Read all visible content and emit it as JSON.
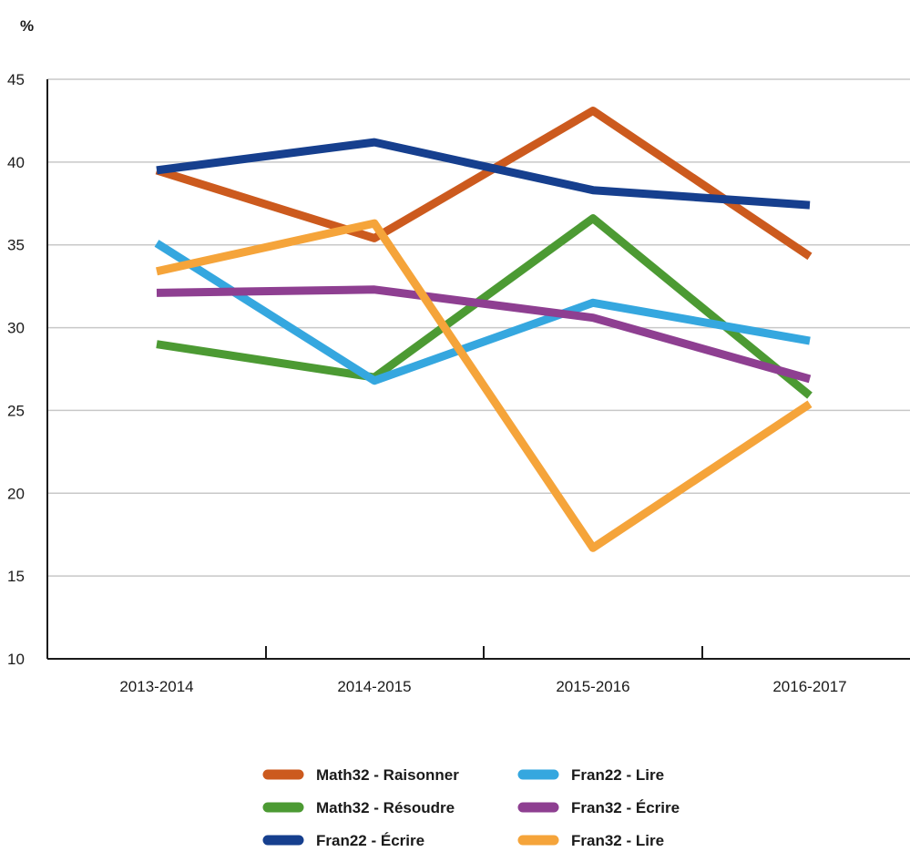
{
  "chart_data": {
    "type": "line",
    "ylabel": "%",
    "categories": [
      "2013-2014",
      "2014-2015",
      "2015-2016",
      "2016-2017"
    ],
    "ylim": [
      10,
      45
    ],
    "yticks": [
      10,
      15,
      20,
      25,
      30,
      35,
      40,
      45
    ],
    "grid": true,
    "legend_position": "bottom",
    "series": [
      {
        "name": "Math32 - Raisonner",
        "color": "#cc5a1e",
        "values": [
          39.5,
          35.4,
          43.1,
          34.3
        ]
      },
      {
        "name": "Math32 - Résoudre",
        "color": "#4c9a33",
        "values": [
          29.0,
          27.0,
          36.6,
          25.9
        ]
      },
      {
        "name": "Fran22 - Écrire",
        "color": "#163f8e",
        "values": [
          39.5,
          41.2,
          38.3,
          37.4
        ]
      },
      {
        "name": "Fran22 - Lire",
        "color": "#35a7df",
        "values": [
          35.1,
          26.8,
          31.5,
          29.2
        ]
      },
      {
        "name": "Fran32 - Écrire",
        "color": "#8e3f91",
        "values": [
          32.1,
          32.3,
          30.6,
          26.9
        ]
      },
      {
        "name": "Fran32 - Lire",
        "color": "#f5a43a",
        "values": [
          33.4,
          36.3,
          16.7,
          25.4
        ]
      }
    ]
  }
}
